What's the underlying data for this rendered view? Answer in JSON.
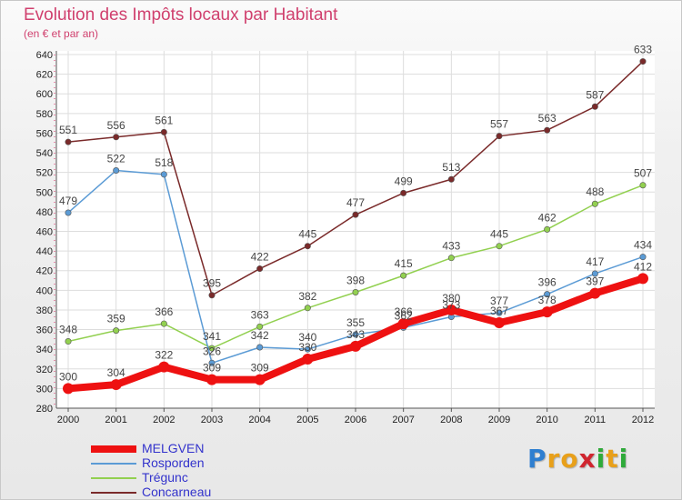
{
  "header": {
    "title": "Evolution des Impôts locaux par Habitant",
    "subtitle": "(en € et par an)"
  },
  "logo": {
    "letters": [
      {
        "ch": "P",
        "color": "#2f7fd0"
      },
      {
        "ch": "r",
        "color": "#e8a01a"
      },
      {
        "ch": "o",
        "color": "#e8a01a"
      },
      {
        "ch": "x",
        "color": "#d0252f"
      },
      {
        "ch": "i",
        "color": "#2faa3a"
      },
      {
        "ch": "t",
        "color": "#e8a01a"
      },
      {
        "ch": "i",
        "color": "#2faa3a"
      }
    ]
  },
  "chart_data": {
    "type": "line",
    "title": "Evolution des Impôts locaux par Habitant",
    "subtitle": "(en € et par an)",
    "xlabel": "",
    "ylabel": "",
    "x": [
      "2000",
      "2001",
      "2002",
      "2003",
      "2004",
      "2005",
      "2006",
      "2007",
      "2008",
      "2009",
      "2010",
      "2011",
      "2012"
    ],
    "ylim": [
      280,
      640
    ],
    "yticks": [
      280,
      300,
      320,
      340,
      360,
      380,
      400,
      420,
      440,
      460,
      480,
      500,
      520,
      540,
      560,
      580,
      600,
      620,
      640
    ],
    "grid": true,
    "legend_position": "bottom-left",
    "series": [
      {
        "name": "MELGVEN",
        "color": "#ee1111",
        "values": [
          300,
          304,
          322,
          309,
          309,
          330,
          343,
          366,
          380,
          367,
          378,
          397,
          412
        ]
      },
      {
        "name": "Rosporden",
        "color": "#5b9bd5",
        "values": [
          479,
          522,
          518,
          326,
          342,
          340,
          355,
          362,
          373,
          377,
          396,
          417,
          434
        ]
      },
      {
        "name": "Trégunc",
        "color": "#92d050",
        "values": [
          348,
          359,
          366,
          341,
          363,
          382,
          398,
          415,
          433,
          445,
          462,
          488,
          507
        ]
      },
      {
        "name": "Concarneau",
        "color": "#7a2a2a",
        "values": [
          551,
          556,
          561,
          395,
          422,
          445,
          477,
          499,
          513,
          557,
          563,
          587,
          633
        ]
      }
    ]
  }
}
